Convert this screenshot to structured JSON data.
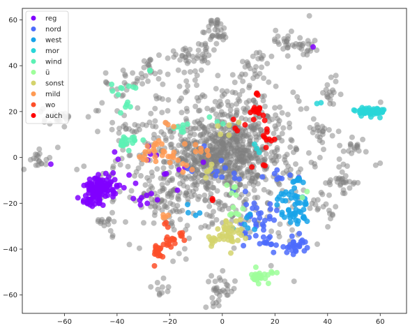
{
  "chart_data": {
    "type": "scatter",
    "xlim": [
      -76,
      70
    ],
    "ylim": [
      -68,
      65
    ],
    "xticks": [
      -60,
      -40,
      -20,
      0,
      20,
      40,
      60
    ],
    "yticks": [
      -60,
      -40,
      -20,
      0,
      20,
      40,
      60
    ],
    "grid": false,
    "legend_position": "top-left",
    "background_series": {
      "color": "#808080",
      "clusters": [
        {
          "x": 0,
          "y": 2,
          "sx": 9,
          "sy": 8,
          "n": 420
        },
        {
          "x": 0,
          "y": 0,
          "sx": 20,
          "sy": 18,
          "n": 650
        },
        {
          "x": -2,
          "y": 55,
          "sx": 2,
          "sy": 3,
          "n": 35
        },
        {
          "x": 12,
          "y": 39,
          "sx": 3,
          "sy": 4,
          "n": 25
        },
        {
          "x": -8,
          "y": 46,
          "sx": 3,
          "sy": 3,
          "n": 25
        },
        {
          "x": 31,
          "y": 49,
          "sx": 3,
          "sy": 2,
          "n": 25
        },
        {
          "x": 22,
          "y": 51,
          "sx": 3,
          "sy": 2,
          "n": 15
        },
        {
          "x": -15,
          "y": 44,
          "sx": 2,
          "sy": 3,
          "n": 15
        },
        {
          "x": -28,
          "y": 40,
          "sx": 2,
          "sy": 3,
          "n": 15
        },
        {
          "x": -37,
          "y": 33,
          "sx": 4,
          "sy": 3,
          "n": 20
        },
        {
          "x": -62,
          "y": 18,
          "sx": 3,
          "sy": 2,
          "n": 22
        },
        {
          "x": -69,
          "y": -1,
          "sx": 2,
          "sy": 2,
          "n": 18
        },
        {
          "x": -44,
          "y": -28,
          "sx": 2,
          "sy": 1.5,
          "n": 14
        },
        {
          "x": -1,
          "y": -58,
          "sx": 3,
          "sy": 3,
          "n": 32
        },
        {
          "x": 47,
          "y": -11,
          "sx": 2,
          "sy": 3,
          "n": 15
        },
        {
          "x": 50,
          "y": 5,
          "sx": 2,
          "sy": 2,
          "n": 15
        },
        {
          "x": 41,
          "y": 28,
          "sx": 2,
          "sy": 3,
          "n": 15
        },
        {
          "x": 40,
          "y": -24,
          "sx": 3,
          "sy": 3,
          "n": 15
        },
        {
          "x": -24,
          "y": -56,
          "sx": 3,
          "sy": 2,
          "n": 10
        },
        {
          "x": -38,
          "y": 12,
          "sx": 3,
          "sy": 2,
          "n": 12
        },
        {
          "x": 37,
          "y": 10,
          "sx": 2,
          "sy": 3,
          "n": 12
        },
        {
          "x": 44,
          "y": -10,
          "sx": 2,
          "sy": 2,
          "n": 10
        },
        {
          "x": -23,
          "y": -18,
          "sx": 5,
          "sy": 6,
          "n": 60
        }
      ]
    },
    "series": [
      {
        "name": "reg",
        "color": "#8000ff",
        "clusters": [
          {
            "x": -46,
            "y": -13,
            "sx": 3,
            "sy": 2.5,
            "n": 110
          },
          {
            "x": -49,
            "y": -19,
            "sx": 2,
            "sy": 1.5,
            "n": 25
          },
          {
            "x": -30,
            "y": -16,
            "sx": 4,
            "sy": 6,
            "n": 10
          },
          {
            "x": -20,
            "y": -2,
            "sx": 5,
            "sy": 5,
            "n": 10
          },
          {
            "x": 34,
            "y": 48,
            "sx": 0.3,
            "sy": 0.3,
            "n": 1
          },
          {
            "x": -65,
            "y": -3,
            "sx": 0.3,
            "sy": 0.3,
            "n": 1
          },
          {
            "x": -40,
            "y": 0,
            "sx": 1,
            "sy": 1,
            "n": 2
          }
        ]
      },
      {
        "name": "nord",
        "color": "#4c6bfb",
        "clusters": [
          {
            "x": 13,
            "y": -27,
            "sx": 4,
            "sy": 4,
            "n": 30
          },
          {
            "x": 28,
            "y": -38,
            "sx": 2,
            "sy": 2,
            "n": 25
          },
          {
            "x": 17,
            "y": -38,
            "sx": 3,
            "sy": 2,
            "n": 12
          },
          {
            "x": 0,
            "y": -5,
            "sx": 6,
            "sy": 4,
            "n": 15
          },
          {
            "x": 22,
            "y": -7,
            "sx": 4,
            "sy": 3,
            "n": 8
          }
        ]
      },
      {
        "name": "west",
        "color": "#17a3e9",
        "clusters": [
          {
            "x": 27,
            "y": -22,
            "sx": 3,
            "sy": 4,
            "n": 50
          },
          {
            "x": 30,
            "y": -10,
            "sx": 2,
            "sy": 2,
            "n": 8
          },
          {
            "x": 8,
            "y": -28,
            "sx": 3,
            "sy": 2,
            "n": 6
          },
          {
            "x": -13,
            "y": -23,
            "sx": 2,
            "sy": 2,
            "n": 4
          }
        ]
      },
      {
        "name": "mor",
        "color": "#28d6d8",
        "clusters": [
          {
            "x": 56,
            "y": 20,
            "sx": 3,
            "sy": 1,
            "n": 60
          },
          {
            "x": 12,
            "y": 3,
            "sx": 2,
            "sy": 2,
            "n": 3
          },
          {
            "x": 38,
            "y": 23,
            "sx": 1,
            "sy": 1,
            "n": 2
          }
        ]
      },
      {
        "name": "wind",
        "color": "#5cf1b4",
        "clusters": [
          {
            "x": -35,
            "y": 7,
            "sx": 2,
            "sy": 2,
            "n": 18
          },
          {
            "x": -36,
            "y": 30,
            "sx": 3,
            "sy": 1,
            "n": 8
          },
          {
            "x": -16,
            "y": 13,
            "sx": 2,
            "sy": 1.5,
            "n": 8
          },
          {
            "x": -37,
            "y": 23,
            "sx": 2,
            "sy": 2,
            "n": 5
          },
          {
            "x": -28,
            "y": 37,
            "sx": 1,
            "sy": 1,
            "n": 2
          },
          {
            "x": -5,
            "y": 14,
            "sx": 2,
            "sy": 2,
            "n": 3
          }
        ]
      },
      {
        "name": "ü",
        "color": "#9efe9a",
        "clusters": [
          {
            "x": 15,
            "y": -52,
            "sx": 2,
            "sy": 1.5,
            "n": 25
          },
          {
            "x": 6,
            "y": -23,
            "sx": 2,
            "sy": 2,
            "n": 6
          },
          {
            "x": 2,
            "y": -14,
            "sx": 2,
            "sy": 2,
            "n": 5
          },
          {
            "x": 32,
            "y": -16,
            "sx": 1,
            "sy": 1,
            "n": 2
          }
        ]
      },
      {
        "name": "sonst",
        "color": "#d4d36c",
        "clusters": [
          {
            "x": 3,
            "y": -33,
            "sx": 2.5,
            "sy": 3,
            "n": 35
          },
          {
            "x": -3,
            "y": -35,
            "sx": 1.5,
            "sy": 1.5,
            "n": 10
          },
          {
            "x": 4,
            "y": 13,
            "sx": 3,
            "sy": 2,
            "n": 5
          },
          {
            "x": -5,
            "y": -6,
            "sx": 3,
            "sy": 2,
            "n": 5
          }
        ]
      },
      {
        "name": "mild",
        "color": "#ff9a53",
        "clusters": [
          {
            "x": -24,
            "y": 3,
            "sx": 4,
            "sy": 2.5,
            "n": 25
          },
          {
            "x": -15,
            "y": -3,
            "sx": 3,
            "sy": 2,
            "n": 6
          },
          {
            "x": -22,
            "y": -26,
            "sx": 2,
            "sy": 2,
            "n": 4
          },
          {
            "x": -8,
            "y": 3,
            "sx": 3,
            "sy": 2,
            "n": 6
          },
          {
            "x": -20,
            "y": 15,
            "sx": 2,
            "sy": 1,
            "n": 3
          }
        ]
      },
      {
        "name": "wo",
        "color": "#fd4f29",
        "clusters": [
          {
            "x": -25,
            "y": -42,
            "sx": 1.2,
            "sy": 2,
            "n": 18
          },
          {
            "x": -20,
            "y": -37,
            "sx": 2,
            "sy": 1.5,
            "n": 15
          },
          {
            "x": -16,
            "y": -33,
            "sx": 1,
            "sy": 1,
            "n": 5
          },
          {
            "x": -22,
            "y": -30,
            "sx": 1,
            "sy": 1,
            "n": 3
          }
        ]
      },
      {
        "name": "auch",
        "color": "#ff0000",
        "clusters": [
          {
            "x": 13,
            "y": 20,
            "sx": 2,
            "sy": 1.5,
            "n": 14
          },
          {
            "x": 17,
            "y": 9,
            "sx": 2,
            "sy": 3,
            "n": 10
          },
          {
            "x": 12,
            "y": 28,
            "sx": 1,
            "sy": 1,
            "n": 3
          },
          {
            "x": 6,
            "y": 13,
            "sx": 2,
            "sy": 2,
            "n": 4
          },
          {
            "x": 14,
            "y": -4,
            "sx": 2,
            "sy": 2,
            "n": 3
          },
          {
            "x": -3,
            "y": -17,
            "sx": 1,
            "sy": 1,
            "n": 2
          }
        ]
      }
    ]
  }
}
